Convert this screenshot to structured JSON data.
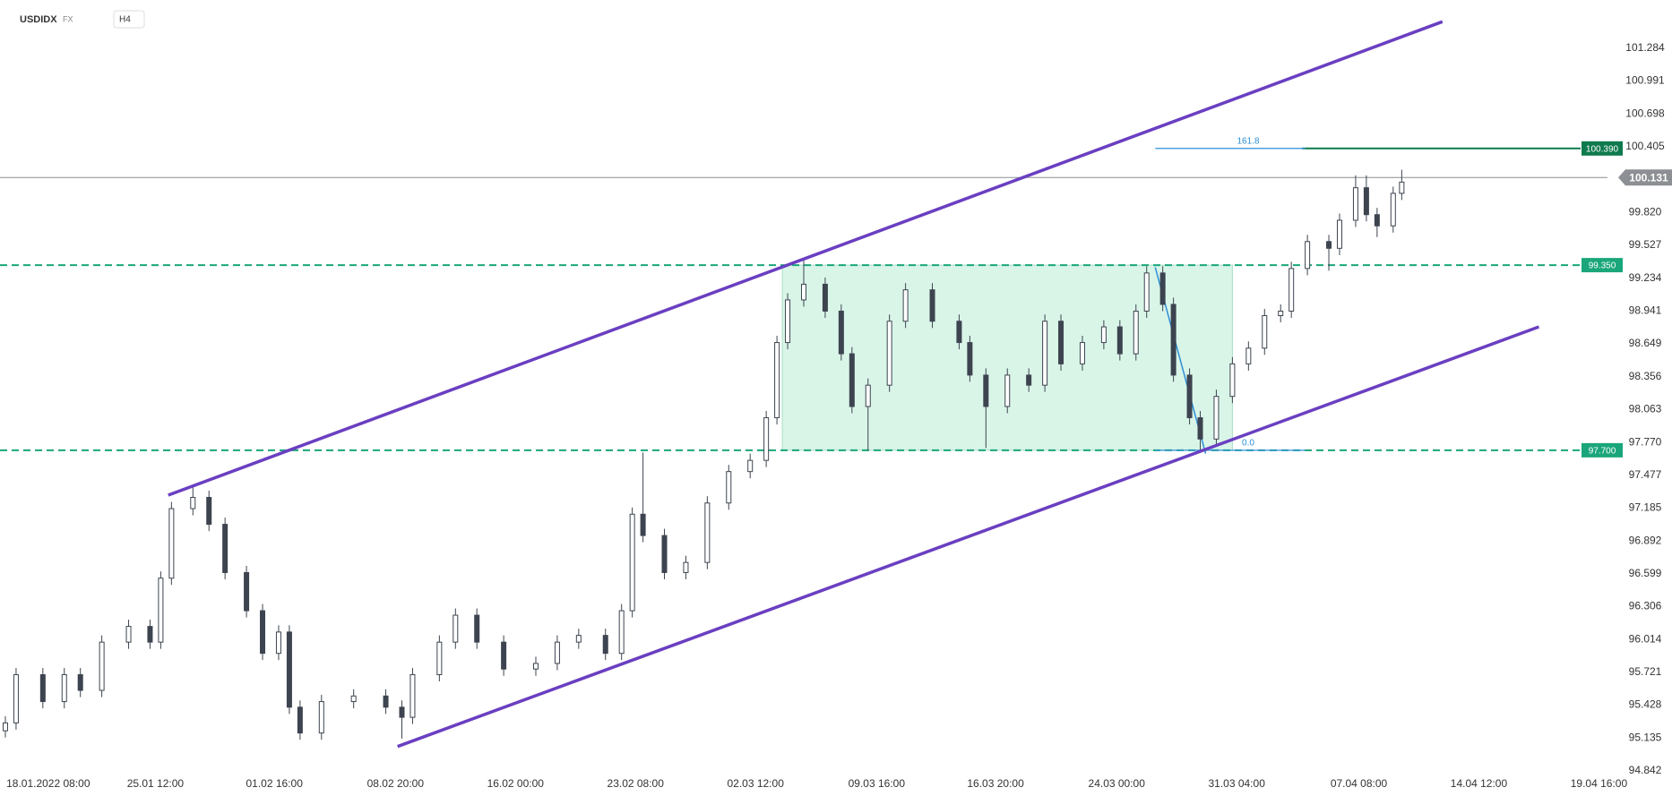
{
  "chart_data": {
    "type": "candlestick",
    "title": "USDIDX",
    "market": "FX",
    "timeframe": "H4",
    "up_color": "#ffffff",
    "down_color": "#3d4450",
    "wick_color": "#3d4450",
    "xlim": [
      0,
      1500
    ],
    "ylim": [
      94.842,
      101.713
    ],
    "xticks": [
      {
        "value": 45,
        "label": "18.01.2022  08:00"
      },
      {
        "value": 145,
        "label": "25.01  12:00"
      },
      {
        "value": 256,
        "label": "01.02  16:00"
      },
      {
        "value": 369,
        "label": "08.02  20:00"
      },
      {
        "value": 481,
        "label": "16.02  00:00"
      },
      {
        "value": 593,
        "label": "23.02  08:00"
      },
      {
        "value": 705,
        "label": "02.03  12:00"
      },
      {
        "value": 818,
        "label": "09.03  16:00"
      },
      {
        "value": 929,
        "label": "16.03  20:00"
      },
      {
        "value": 1042,
        "label": "24.03  00:00"
      },
      {
        "value": 1154,
        "label": "31.03  04:00"
      },
      {
        "value": 1268,
        "label": "07.04  08:00"
      },
      {
        "value": 1380,
        "label": "14.04  12:00"
      },
      {
        "value": 1492,
        "label": "19.04  16:00"
      }
    ],
    "yticks": [
      94.842,
      95.135,
      95.428,
      95.721,
      96.014,
      96.306,
      96.599,
      96.892,
      97.185,
      97.477,
      {
        "value": 97.77,
        "label": "97.770"
      },
      98.063,
      98.356,
      98.649,
      98.941,
      99.234,
      99.527,
      {
        "value": 99.82,
        "label": "99.820"
      },
      100.405,
      100.698,
      100.991,
      101.284
    ],
    "x": [
      5,
      15,
      40,
      60,
      75,
      95,
      120,
      140,
      150,
      160,
      180,
      195,
      210,
      230,
      245,
      260,
      270,
      280,
      300,
      330,
      360,
      375,
      385,
      410,
      425,
      445,
      470,
      500,
      520,
      540,
      565,
      580,
      590,
      600,
      620,
      640,
      660,
      680,
      700,
      715,
      725,
      735,
      750,
      770,
      785,
      795,
      810,
      830,
      845,
      870,
      895,
      905,
      920,
      940,
      960,
      975,
      990,
      1010,
      1030,
      1045,
      1060,
      1070,
      1085,
      1095,
      1110,
      1120,
      1135,
      1150,
      1165,
      1180,
      1195,
      1205,
      1220,
      1240,
      1250,
      1265,
      1275,
      1285,
      1300,
      1308
    ],
    "open": [
      95.2,
      95.27,
      95.7,
      95.46,
      95.7,
      95.56,
      95.99,
      96.13,
      95.99,
      96.56,
      97.18,
      97.28,
      97.04,
      96.61,
      96.27,
      95.89,
      96.08,
      95.41,
      95.18,
      95.46,
      95.51,
      95.41,
      95.32,
      95.7,
      95.99,
      96.23,
      95.99,
      95.75,
      95.8,
      95.99,
      96.05,
      95.89,
      96.27,
      97.13,
      96.94,
      96.61,
      96.7,
      97.23,
      97.51,
      97.61,
      97.99,
      98.66,
      99.04,
      99.18,
      98.94,
      98.56,
      98.09,
      98.28,
      98.85,
      99.13,
      98.85,
      98.66,
      98.37,
      98.09,
      98.37,
      98.28,
      98.85,
      98.47,
      98.66,
      98.8,
      98.56,
      98.94,
      99.28,
      99.0,
      98.37,
      97.99,
      97.8,
      98.18,
      98.47,
      98.61,
      98.9,
      98.94,
      99.32,
      99.56,
      99.5,
      99.75,
      100.04,
      99.8,
      99.7,
      99.99
    ],
    "high": [
      95.33,
      95.76,
      95.76,
      95.76,
      95.76,
      96.05,
      96.19,
      96.19,
      96.62,
      97.24,
      97.38,
      97.34,
      97.1,
      96.67,
      96.33,
      96.14,
      96.14,
      95.47,
      95.52,
      95.57,
      95.57,
      95.47,
      95.76,
      96.05,
      96.29,
      96.29,
      96.05,
      95.86,
      96.05,
      96.11,
      96.11,
      96.33,
      97.19,
      97.68,
      97.0,
      96.76,
      97.29,
      97.57,
      97.67,
      98.05,
      98.72,
      99.1,
      99.39,
      99.24,
      99.0,
      98.62,
      98.34,
      98.91,
      99.19,
      99.19,
      98.91,
      98.72,
      98.43,
      98.43,
      98.43,
      98.91,
      98.91,
      98.72,
      98.86,
      98.86,
      99.0,
      99.34,
      99.34,
      99.06,
      98.43,
      98.05,
      98.24,
      98.53,
      98.67,
      98.96,
      99.0,
      99.38,
      99.62,
      99.62,
      99.81,
      100.15,
      100.15,
      99.86,
      100.05,
      100.2
    ],
    "low": [
      95.14,
      95.21,
      95.4,
      95.4,
      95.5,
      95.5,
      95.93,
      95.93,
      95.93,
      96.5,
      97.12,
      96.98,
      96.55,
      96.21,
      95.83,
      95.83,
      95.35,
      95.12,
      95.12,
      95.4,
      95.35,
      95.13,
      95.26,
      95.64,
      95.93,
      95.93,
      95.69,
      95.69,
      95.74,
      95.93,
      95.83,
      95.83,
      96.21,
      96.88,
      96.55,
      96.55,
      96.64,
      97.17,
      97.45,
      97.55,
      97.93,
      98.6,
      98.98,
      98.88,
      98.5,
      98.03,
      97.7,
      98.22,
      98.79,
      98.79,
      98.6,
      98.31,
      97.72,
      98.03,
      98.22,
      98.22,
      98.41,
      98.41,
      98.6,
      98.5,
      98.5,
      98.88,
      98.94,
      98.31,
      97.93,
      97.7,
      97.74,
      98.12,
      98.41,
      98.55,
      98.84,
      98.88,
      99.26,
      99.3,
      99.44,
      99.69,
      99.74,
      99.6,
      99.64,
      99.93
    ],
    "close": [
      95.27,
      95.7,
      95.46,
      95.7,
      95.56,
      95.99,
      96.13,
      95.99,
      96.56,
      97.18,
      97.28,
      97.04,
      96.61,
      96.27,
      95.89,
      96.08,
      95.41,
      95.18,
      95.46,
      95.51,
      95.41,
      95.32,
      95.7,
      95.99,
      96.23,
      95.99,
      95.75,
      95.8,
      95.99,
      96.05,
      95.89,
      96.27,
      97.13,
      96.94,
      96.61,
      96.7,
      97.23,
      97.51,
      97.61,
      97.99,
      98.66,
      99.04,
      99.18,
      98.94,
      98.56,
      98.09,
      98.28,
      98.85,
      99.13,
      98.85,
      98.66,
      98.37,
      98.09,
      98.37,
      98.28,
      98.85,
      98.47,
      98.66,
      98.8,
      98.56,
      98.94,
      99.28,
      99.0,
      98.37,
      97.99,
      97.8,
      98.18,
      98.47,
      98.61,
      98.9,
      98.94,
      99.32,
      99.56,
      99.5,
      99.75,
      100.04,
      99.8,
      99.7,
      99.99,
      100.09
    ],
    "range_box": {
      "x": [
        730,
        1150
      ],
      "y": [
        97.7,
        99.35
      ],
      "color": "#d9f5e8"
    },
    "channel_color": "#6a3fc1",
    "channel": [
      {
        "x": [
          157,
          1346
        ],
        "y": [
          97.3,
          101.52
        ]
      },
      {
        "x": [
          371,
          1436
        ],
        "y": [
          95.06,
          98.8
        ]
      }
    ],
    "levels": [
      {
        "value": 99.35,
        "label": "99.350",
        "color": "#1aa67a",
        "style": "dashed"
      },
      {
        "value": 97.7,
        "label": "97.700",
        "color": "#1aa67a",
        "style": "dashed"
      },
      {
        "value": 100.39,
        "label": "100.390",
        "color": "#0e7a4e",
        "style": "solid",
        "from": 1215
      }
    ],
    "last_price": 100.131,
    "last_price_color": "#8c8f94",
    "fib_color": "#2d8fd8",
    "fib": [
      {
        "text": "161.8",
        "price": 100.39
      },
      {
        "text": "0.0",
        "price": 97.7
      }
    ],
    "fib_x": [
      1078,
      1218
    ],
    "fib_swing": {
      "x": [
        1078,
        1125
      ],
      "y": [
        99.33,
        97.67
      ]
    }
  }
}
